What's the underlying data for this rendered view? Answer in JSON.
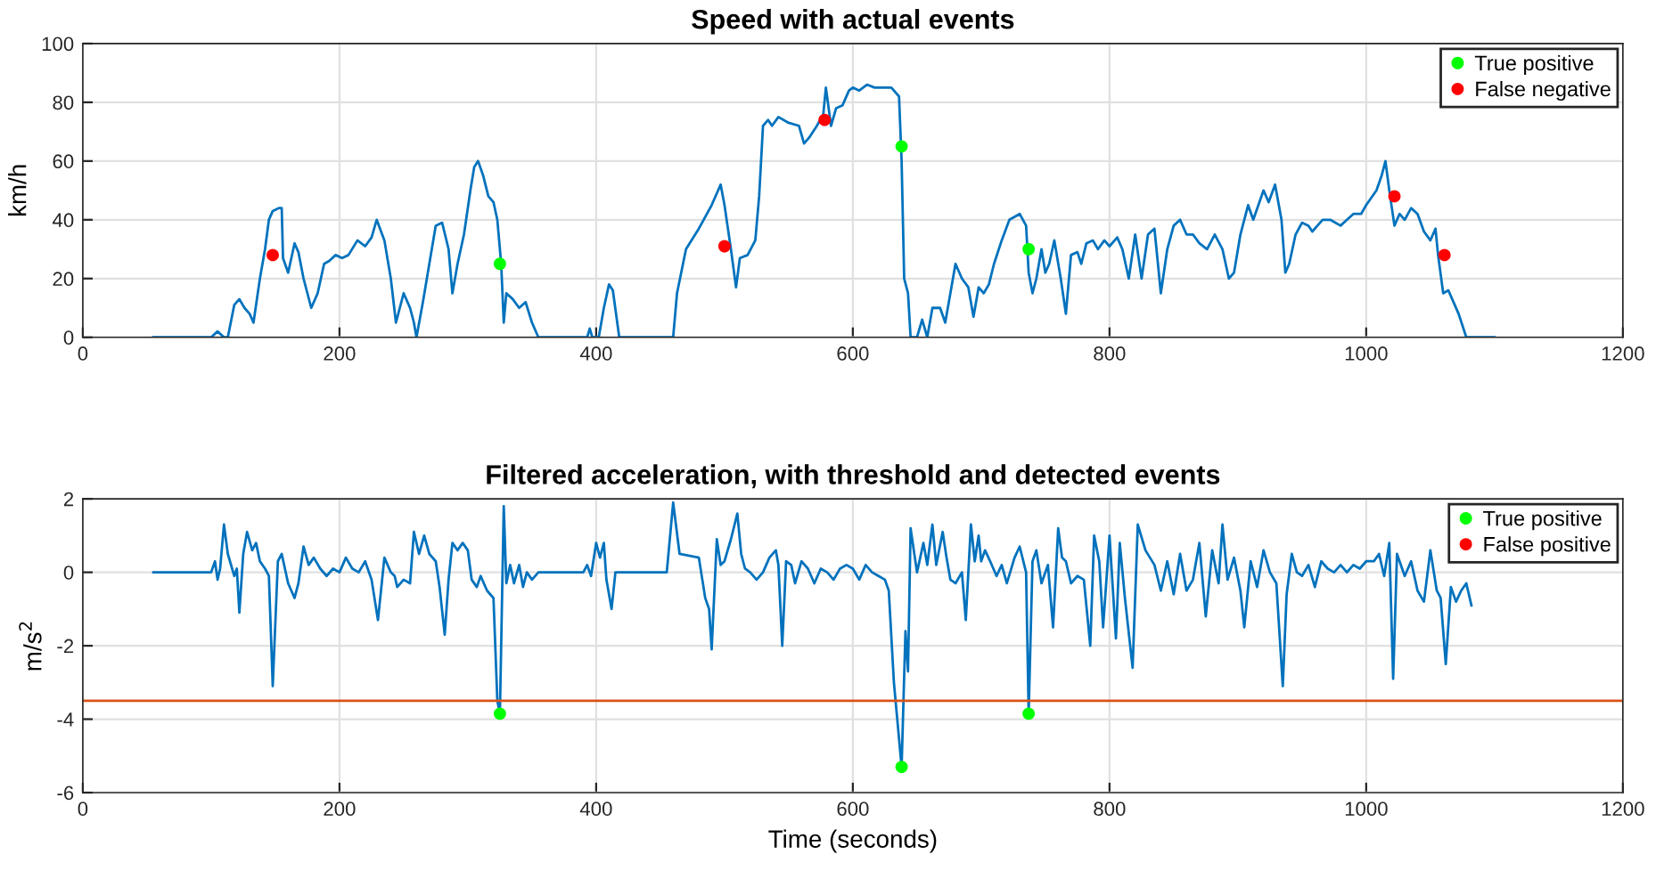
{
  "chart_data": [
    {
      "type": "line",
      "title": "Speed with actual events",
      "ylabel": "km/h",
      "xlim": [
        0,
        1200
      ],
      "ylim": [
        0,
        100
      ],
      "xticks": [
        0,
        200,
        400,
        600,
        800,
        1000,
        1200
      ],
      "yticks": [
        0,
        20,
        40,
        60,
        80,
        100
      ],
      "grid": true,
      "legend": "top right",
      "series": [
        {
          "color": "#0072bd",
          "x": [
            55,
            100,
            105,
            110,
            113,
            118,
            122,
            126,
            130,
            133,
            138,
            142,
            145,
            148,
            153,
            155,
            156,
            160,
            165,
            168,
            172,
            178,
            183,
            188,
            192,
            197,
            202,
            207,
            214,
            220,
            225,
            229,
            235,
            240,
            244,
            250,
            255,
            258,
            260,
            265,
            270,
            275,
            280,
            285,
            288,
            292,
            297,
            302,
            305,
            308,
            312,
            316,
            320,
            323,
            326,
            328,
            330,
            335,
            340,
            345,
            350,
            355,
            393,
            395,
            397,
            402,
            406,
            410,
            413,
            418,
            460,
            463,
            470,
            480,
            490,
            497,
            500,
            505,
            509,
            512,
            518,
            524,
            527,
            530,
            534,
            537,
            542,
            550,
            558,
            562,
            566,
            572,
            577,
            579,
            583,
            587,
            592,
            597,
            600,
            605,
            611,
            617,
            624,
            630,
            636,
            638,
            640,
            643,
            645,
            650,
            654,
            658,
            662,
            668,
            672,
            676,
            680,
            685,
            690,
            694,
            698,
            702,
            706,
            710,
            716,
            722,
            730,
            735,
            737,
            740,
            743,
            747,
            750,
            753,
            757,
            762,
            766,
            770,
            775,
            778,
            782,
            787,
            791,
            796,
            800,
            806,
            810,
            815,
            820,
            825,
            830,
            835,
            840,
            845,
            850,
            855,
            860,
            865,
            870,
            876,
            882,
            888,
            893,
            897,
            902,
            908,
            912,
            916,
            920,
            924,
            929,
            934,
            937,
            940,
            945,
            950,
            955,
            958,
            962,
            966,
            972,
            980,
            985,
            990,
            996,
            1000,
            1008,
            1012,
            1015,
            1018,
            1022,
            1026,
            1030,
            1035,
            1040,
            1045,
            1050,
            1054,
            1056,
            1060,
            1064,
            1068,
            1072,
            1075,
            1078,
            1100
          ],
          "values": [
            0,
            0,
            2,
            0,
            0,
            11,
            13,
            10,
            8,
            5,
            20,
            30,
            40,
            43,
            44,
            44,
            27,
            22,
            32,
            29,
            20,
            10,
            15,
            25,
            26,
            28,
            27,
            28,
            33,
            31,
            34,
            40,
            33,
            20,
            5,
            15,
            10,
            5,
            0,
            12,
            25,
            38,
            39,
            30,
            15,
            25,
            35,
            50,
            58,
            60,
            55,
            48,
            46,
            40,
            25,
            5,
            15,
            13,
            10,
            12,
            5,
            0,
            0,
            3,
            0,
            0,
            10,
            18,
            16,
            0,
            0,
            15,
            30,
            37,
            45,
            52,
            45,
            30,
            17,
            27,
            28,
            33,
            48,
            72,
            74,
            72,
            75,
            73,
            72,
            66,
            68,
            72,
            76,
            85,
            72,
            78,
            79,
            84,
            85,
            84,
            86,
            85,
            85,
            85,
            82,
            60,
            20,
            15,
            0,
            0,
            6,
            0,
            10,
            10,
            5,
            15,
            25,
            20,
            17,
            7,
            17,
            15,
            18,
            25,
            33,
            40,
            42,
            38,
            22,
            15,
            20,
            30,
            22,
            25,
            33,
            20,
            8,
            28,
            29,
            25,
            32,
            33,
            30,
            33,
            31,
            34,
            30,
            20,
            35,
            20,
            35,
            37,
            15,
            30,
            38,
            40,
            35,
            35,
            32,
            30,
            35,
            30,
            20,
            22,
            35,
            45,
            40,
            45,
            50,
            46,
            52,
            40,
            22,
            25,
            35,
            39,
            38,
            36,
            38,
            40,
            40,
            38,
            40,
            42,
            42,
            45,
            50,
            55,
            60,
            50,
            38,
            42,
            40,
            44,
            42,
            36,
            33,
            37,
            28,
            15,
            16,
            12,
            8,
            4,
            0,
            0
          ]
        },
        {
          "type": "scatter",
          "name": "True positive",
          "color": "#00ff00",
          "marker": "circle",
          "x": [
            325,
            638,
            737
          ],
          "values": [
            25,
            65,
            30
          ]
        },
        {
          "type": "scatter",
          "name": "False negative",
          "color": "#ff0000",
          "marker": "circle",
          "x": [
            148,
            500,
            578,
            1022,
            1061
          ],
          "values": [
            28,
            31,
            74,
            48,
            28
          ]
        }
      ]
    },
    {
      "type": "line",
      "title": "Filtered acceleration, with threshold and detected events",
      "xlabel": "Time (seconds)",
      "ylabel": "m/s$^{2}$",
      "xlim": [
        0,
        1200
      ],
      "ylim": [
        -6,
        2
      ],
      "xticks": [
        0,
        200,
        400,
        600,
        800,
        1000,
        1200
      ],
      "yticks": [
        -6,
        -4,
        -2,
        0,
        2
      ],
      "grid": true,
      "legend": "top right",
      "ref_lines": [
        {
          "axis": "y",
          "value": -3.5,
          "color": "#d95319"
        }
      ],
      "series": [
        {
          "color": "#0072bd",
          "x": [
            55,
            100,
            103,
            105,
            107,
            110,
            113,
            118,
            120,
            122,
            125,
            128,
            132,
            135,
            138,
            142,
            145,
            148,
            152,
            155,
            160,
            165,
            168,
            172,
            176,
            180,
            185,
            190,
            195,
            200,
            205,
            210,
            215,
            220,
            225,
            230,
            235,
            240,
            243,
            245,
            250,
            255,
            258,
            262,
            266,
            270,
            275,
            278,
            282,
            285,
            288,
            292,
            296,
            300,
            303,
            307,
            310,
            315,
            320,
            323,
            325,
            327,
            328,
            330,
            333,
            336,
            340,
            343,
            346,
            350,
            355,
            390,
            393,
            396,
            400,
            403,
            406,
            408,
            412,
            415,
            455,
            460,
            465,
            480,
            485,
            488,
            490,
            494,
            497,
            500,
            505,
            510,
            513,
            516,
            520,
            525,
            530,
            535,
            540,
            542,
            545,
            548,
            552,
            555,
            560,
            565,
            570,
            575,
            580,
            585,
            590,
            595,
            600,
            605,
            610,
            615,
            620,
            625,
            628,
            632,
            638,
            641,
            643,
            645,
            650,
            655,
            658,
            662,
            665,
            670,
            673,
            676,
            680,
            685,
            688,
            692,
            695,
            698,
            700,
            703,
            707,
            712,
            716,
            720,
            726,
            730,
            735,
            737,
            740,
            743,
            747,
            752,
            756,
            760,
            763,
            766,
            770,
            775,
            780,
            785,
            788,
            792,
            795,
            800,
            805,
            808,
            812,
            818,
            822,
            828,
            835,
            840,
            845,
            850,
            855,
            860,
            865,
            870,
            875,
            880,
            885,
            888,
            892,
            897,
            902,
            905,
            910,
            915,
            920,
            925,
            930,
            935,
            938,
            942,
            946,
            950,
            955,
            960,
            965,
            970,
            975,
            980,
            985,
            990,
            995,
            1000,
            1006,
            1010,
            1014,
            1018,
            1021,
            1024,
            1030,
            1035,
            1040,
            1045,
            1050,
            1055,
            1058,
            1062,
            1066,
            1070,
            1074,
            1078,
            1082
          ],
          "values": [
            0,
            0,
            0.3,
            -0.2,
            0.1,
            1.3,
            0.5,
            -0.1,
            0.1,
            -1.1,
            0.5,
            1.1,
            0.6,
            0.8,
            0.3,
            0.1,
            -0.1,
            -3.1,
            0.3,
            0.5,
            -0.3,
            -0.7,
            -0.3,
            0.7,
            0.2,
            0.4,
            0.1,
            -0.1,
            0.1,
            0,
            0.4,
            0.1,
            0,
            0.3,
            -0.2,
            -1.3,
            0.4,
            0,
            -0.1,
            -0.4,
            -0.2,
            -0.3,
            1.1,
            0.5,
            1.0,
            0.5,
            0.3,
            -0.4,
            -1.7,
            -0.2,
            0.8,
            0.6,
            0.8,
            0.6,
            -0.2,
            -0.4,
            -0.1,
            -0.5,
            -0.7,
            -3.5,
            -3.85,
            -0.1,
            1.8,
            -0.3,
            0.2,
            -0.3,
            0.2,
            -0.4,
            0,
            -0.2,
            0,
            0,
            0.2,
            -0.1,
            0.8,
            0.4,
            0.8,
            -0.2,
            -1.0,
            0,
            0,
            1.9,
            0.5,
            0.4,
            -0.7,
            -1.0,
            -2.1,
            0.9,
            0.2,
            0.3,
            0.9,
            1.6,
            0.5,
            0.1,
            0,
            -0.2,
            0,
            0.4,
            0.6,
            0.2,
            -2.0,
            0.3,
            0.2,
            -0.3,
            0.3,
            0.1,
            -0.3,
            0.1,
            0,
            -0.2,
            0.1,
            0.2,
            0.1,
            -0.2,
            0.2,
            0,
            -0.1,
            -0.2,
            -0.5,
            -3.0,
            -5.3,
            -1.6,
            -2.7,
            1.2,
            0,
            0.8,
            0.2,
            1.3,
            0.2,
            1.1,
            0.4,
            -0.2,
            -0.3,
            0,
            -1.3,
            1.3,
            0.3,
            1.0,
            0.3,
            0.6,
            0.3,
            -0.1,
            0.2,
            -0.3,
            0.4,
            0.7,
            0,
            -3.85,
            0.3,
            0.6,
            -0.3,
            0.2,
            -1.5,
            1.2,
            0.4,
            0.3,
            -0.3,
            -0.1,
            -0.2,
            -2.0,
            1.0,
            0.3,
            -1.5,
            1.0,
            -1.8,
            0.8,
            -0.7,
            -2.6,
            1.3,
            0.6,
            0.2,
            -0.5,
            0.3,
            -0.6,
            0.5,
            -0.5,
            -0.2,
            0.8,
            -1.2,
            0.6,
            -0.3,
            1.3,
            -0.2,
            0.4,
            -0.5,
            -1.5,
            0.3,
            -0.4,
            0.6,
            0,
            -0.3,
            -3.1,
            -0.6,
            0.5,
            0,
            -0.1,
            0.2,
            -0.4,
            0.3,
            0.1,
            0,
            0.2,
            0,
            0.2,
            0.1,
            0.3,
            0.3,
            0.5,
            -0.1,
            0.8,
            -2.9,
            0.5,
            -0.1,
            0.3,
            -0.5,
            -0.8,
            0.6,
            -0.5,
            -0.7,
            -2.5,
            -0.4,
            -0.8,
            -0.5,
            -0.3,
            -0.9
          ]
        },
        {
          "type": "scatter",
          "name": "True positive",
          "color": "#00ff00",
          "marker": "circle",
          "x": [
            325,
            638,
            737
          ],
          "values": [
            -3.85,
            -5.3,
            -3.85
          ]
        },
        {
          "type": "scatter",
          "name": "False positive",
          "color": "#ff0000",
          "marker": "circle"
        }
      ]
    }
  ]
}
